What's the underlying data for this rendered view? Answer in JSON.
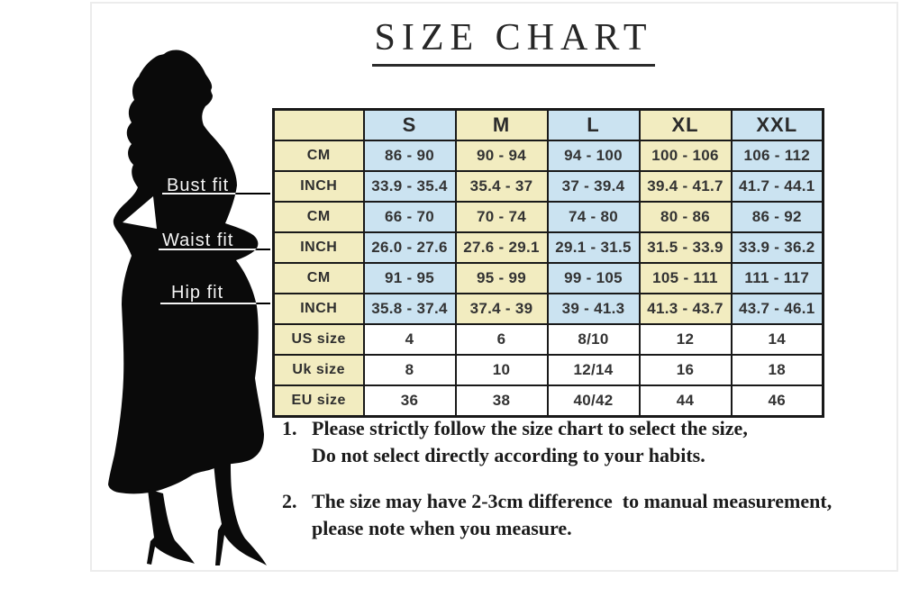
{
  "title": "SIZE CHART",
  "measure_labels": {
    "bust": "Bust fit",
    "waist": "Waist fit",
    "hip": "Hip fit"
  },
  "size_table": {
    "corner": "",
    "sizes": [
      "S",
      "M",
      "L",
      "XL",
      "XXL"
    ],
    "rows": [
      {
        "label": "CM",
        "values": [
          "86 - 90",
          "90 - 94",
          "94 - 100",
          "100 - 106",
          "106 - 112"
        ]
      },
      {
        "label": "INCH",
        "values": [
          "33.9 - 35.4",
          "35.4 - 37",
          "37 - 39.4",
          "39.4 - 41.7",
          "41.7 - 44.1"
        ]
      },
      {
        "label": "CM",
        "values": [
          "66 - 70",
          "70 - 74",
          "74 - 80",
          "80 - 86",
          "86 - 92"
        ]
      },
      {
        "label": "INCH",
        "values": [
          "26.0 - 27.6",
          "27.6 - 29.1",
          "29.1 - 31.5",
          "31.5 - 33.9",
          "33.9 - 36.2"
        ]
      },
      {
        "label": "CM",
        "values": [
          "91 - 95",
          "95 - 99",
          "99 - 105",
          "105 - 111",
          "111 - 117"
        ]
      },
      {
        "label": "INCH",
        "values": [
          "35.8 - 37.4",
          "37.4 - 39",
          "39 - 41.3",
          "41.3 - 43.7",
          "43.7 - 46.1"
        ]
      },
      {
        "label": "US size",
        "values": [
          "4",
          "6",
          "8/10",
          "12",
          "14"
        ]
      },
      {
        "label": "Uk size",
        "values": [
          "8",
          "10",
          "12/14",
          "16",
          "18"
        ]
      },
      {
        "label": "EU size",
        "values": [
          "36",
          "38",
          "40/42",
          "44",
          "46"
        ]
      }
    ]
  },
  "notes": [
    {
      "number": "1.",
      "lines": [
        "Please strictly follow the size chart to select the size,",
        "Do not select directly according to your habits."
      ]
    },
    {
      "number": "2.",
      "lines": [
        "The size may have 2-3cm difference  to manual measurement,",
        "please note when you measure."
      ]
    }
  ],
  "colors": {
    "cell_yellow": "#f2ecc0",
    "cell_blue": "#cbe3f1",
    "table_border": "#191919",
    "silhouette": "#0a0a0a",
    "title_text": "#262626",
    "measure_label_text": "#ffffff",
    "frame_border": "#ececec"
  }
}
